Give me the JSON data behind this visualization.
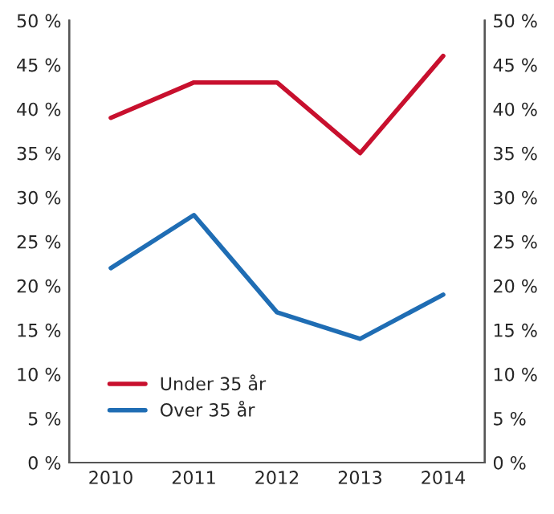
{
  "chart_data": {
    "type": "line",
    "categories": [
      "2010",
      "2011",
      "2012",
      "2013",
      "2014"
    ],
    "series": [
      {
        "name": "Under 35 år",
        "color": "#c8102e",
        "values": [
          39,
          43,
          43,
          35,
          46
        ]
      },
      {
        "name": "Over 35 år",
        "color": "#1f6db4",
        "values": [
          22,
          28,
          17,
          14,
          19
        ]
      }
    ],
    "ylim": [
      0,
      50
    ],
    "yticks": [
      {
        "value": 0,
        "label": "0 %"
      },
      {
        "value": 5,
        "label": "5 %"
      },
      {
        "value": 10,
        "label": "10 %"
      },
      {
        "value": 15,
        "label": "15 %"
      },
      {
        "value": 20,
        "label": "20 %"
      },
      {
        "value": 25,
        "label": "25 %"
      },
      {
        "value": 30,
        "label": "30 %"
      },
      {
        "value": 35,
        "label": "35 %"
      },
      {
        "value": 40,
        "label": "40 %"
      },
      {
        "value": 45,
        "label": "45 %"
      },
      {
        "value": 50,
        "label": "50 %"
      }
    ],
    "y2lim": [
      0,
      50
    ],
    "y2ticks": [
      {
        "value": 0,
        "label": "0 %"
      },
      {
        "value": 5,
        "label": "5 %"
      },
      {
        "value": 10,
        "label": "10 %"
      },
      {
        "value": 15,
        "label": "15 %"
      },
      {
        "value": 20,
        "label": "20 %"
      },
      {
        "value": 25,
        "label": "25 %"
      },
      {
        "value": 30,
        "label": "30 %"
      },
      {
        "value": 35,
        "label": "35 %"
      },
      {
        "value": 40,
        "label": "40 %"
      },
      {
        "value": 45,
        "label": "45 %"
      },
      {
        "value": 50,
        "label": "50 %"
      }
    ],
    "legend": "bottom left",
    "grid": false,
    "marker": "none",
    "line_style": "solid"
  }
}
